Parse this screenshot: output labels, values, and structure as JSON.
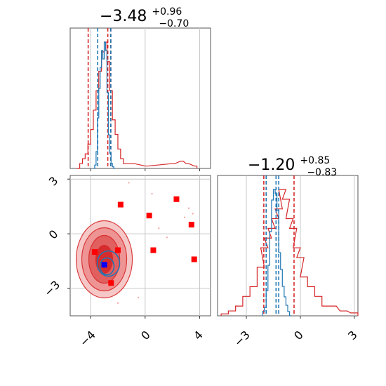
{
  "chart_data": [
    {
      "panel": "marginal-param-1",
      "type": "histogram",
      "title": {
        "median": "−3.48",
        "plus": "+0.96",
        "minus": "−0.70"
      },
      "xlim": [
        -5.5,
        4.8
      ],
      "grid": true,
      "series": [
        {
          "color": "#d62728",
          "bins": [
            [
              -5.0,
              0
            ],
            [
              -4.8,
              1
            ],
            [
              -4.6,
              2
            ],
            [
              -4.4,
              3
            ],
            [
              -4.2,
              5
            ],
            [
              -4.0,
              8
            ],
            [
              -3.8,
              12
            ],
            [
              -3.6,
              16
            ],
            [
              -3.4,
              20
            ],
            [
              -3.2,
              24
            ],
            [
              -3.0,
              26
            ],
            [
              -2.8,
              22
            ],
            [
              -2.6,
              16
            ],
            [
              -2.4,
              10
            ],
            [
              -2.2,
              7
            ],
            [
              -2.0,
              4
            ],
            [
              -1.8,
              2
            ],
            [
              -1.6,
              1
            ],
            [
              -1.0,
              1
            ],
            [
              0,
              0.5
            ],
            [
              2,
              1
            ],
            [
              2.6,
              1.5
            ],
            [
              3,
              1
            ],
            [
              3.6,
              0.5
            ]
          ],
          "quantile_lines": [
            -4.18,
            -2.74,
            -2.52
          ]
        },
        {
          "color": "#1f77b4",
          "bins": [
            [
              -3.8,
              0
            ],
            [
              -3.7,
              4
            ],
            [
              -3.6,
              20
            ],
            [
              -3.5,
              60
            ],
            [
              -3.4,
              95
            ],
            [
              -3.3,
              120
            ],
            [
              -3.2,
              140
            ],
            [
              -3.1,
              130
            ],
            [
              -3.0,
              150
            ],
            [
              -2.9,
              140
            ],
            [
              -2.8,
              90
            ],
            [
              -2.7,
              40
            ],
            [
              -2.6,
              18
            ],
            [
              -2.5,
              6
            ],
            [
              -2.4,
              2
            ],
            [
              -2.3,
              0
            ]
          ],
          "quantile_lines": [
            -3.48,
            -2.52
          ]
        }
      ]
    },
    {
      "panel": "2d-density",
      "type": "scatter",
      "xlim": [
        -5.5,
        4.8
      ],
      "ylim": [
        -4.5,
        3.2
      ],
      "xticks": [
        "−4",
        "0",
        "4"
      ],
      "yticks": [
        "3",
        "0",
        "−3"
      ],
      "grid": true,
      "red_points": [
        [
          -1.8,
          1.6
        ],
        [
          2.3,
          1.9
        ],
        [
          0.3,
          1.0
        ],
        [
          3.4,
          0.5
        ],
        [
          -3.7,
          -1.0
        ],
        [
          -2.0,
          -0.9
        ],
        [
          0.6,
          -0.9
        ],
        [
          3.6,
          -1.4
        ],
        [
          -2.5,
          -2.7
        ]
      ],
      "blue_point": [
        -3.0,
        -1.7
      ]
    },
    {
      "panel": "marginal-param-2",
      "type": "histogram",
      "title": {
        "median": "−1.20",
        "plus": "+0.85",
        "minus": "−0.83"
      },
      "xlim": [
        -4.6,
        3.2
      ],
      "xticks": [
        "−3",
        "0",
        "3"
      ],
      "grid": true,
      "series": [
        {
          "color": "#d62728",
          "bins": [
            [
              -4.4,
              0.2
            ],
            [
              -4.0,
              0.5
            ],
            [
              -3.6,
              1
            ],
            [
              -3.2,
              2
            ],
            [
              -2.8,
              3
            ],
            [
              -2.4,
              5
            ],
            [
              -2.2,
              7
            ],
            [
              -2.0,
              8
            ],
            [
              -1.8,
              9
            ],
            [
              -1.6,
              10
            ],
            [
              -1.4,
              11
            ],
            [
              -1.2,
              13
            ],
            [
              -1.0,
              12
            ],
            [
              -0.8,
              10
            ],
            [
              -0.6,
              9
            ],
            [
              -0.4,
              7
            ],
            [
              -0.2,
              6
            ],
            [
              0,
              4
            ],
            [
              0.4,
              3
            ],
            [
              0.8,
              2
            ],
            [
              1.2,
              1
            ],
            [
              1.6,
              1
            ],
            [
              2.2,
              0.5
            ],
            [
              2.8,
              0.3
            ]
          ],
          "quantile_lines": [
            -2.03,
            -0.35
          ]
        },
        {
          "color": "#1f77b4",
          "bins": [
            [
              -2.1,
              2
            ],
            [
              -2.0,
              4
            ],
            [
              -1.9,
              12
            ],
            [
              -1.8,
              24
            ],
            [
              -1.7,
              40
            ],
            [
              -1.6,
              55
            ],
            [
              -1.5,
              60
            ],
            [
              -1.4,
              58
            ],
            [
              -1.3,
              50
            ],
            [
              -1.2,
              30
            ],
            [
              -1.1,
              22
            ],
            [
              -1.0,
              14
            ],
            [
              -0.9,
              9
            ],
            [
              -0.8,
              5
            ],
            [
              -0.7,
              2
            ],
            [
              -0.6,
              0
            ]
          ],
          "quantile_lines": [
            -1.9,
            -1.2,
            -1.35
          ]
        }
      ]
    }
  ]
}
